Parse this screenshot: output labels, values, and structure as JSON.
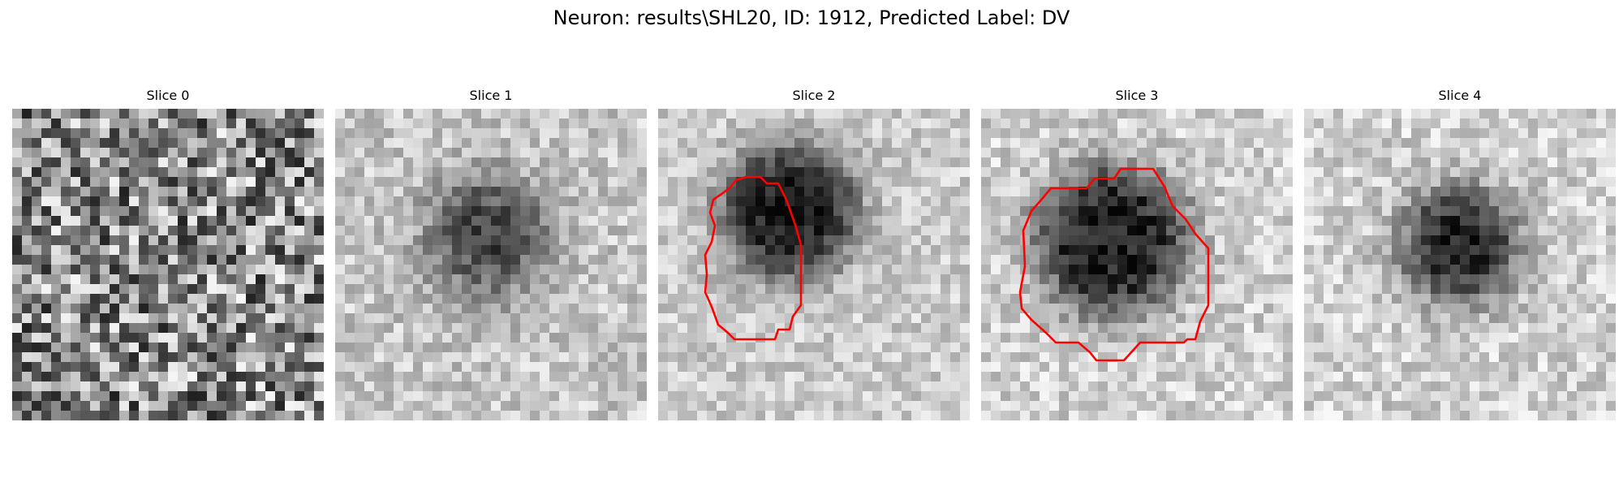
{
  "figure": {
    "title": "Neuron: results\\SHL20, ID: 1912, Predicted Label: DV"
  },
  "colors": {
    "contour": "#ff0000",
    "background": "#ffffff"
  },
  "slices": [
    {
      "title": "Slice 0",
      "has_contour": false,
      "colormap": "gray"
    },
    {
      "title": "Slice 1",
      "has_contour": false,
      "colormap": "gray"
    },
    {
      "title": "Slice 2",
      "has_contour": true,
      "colormap": "gray"
    },
    {
      "title": "Slice 3",
      "has_contour": true,
      "colormap": "gray"
    },
    {
      "title": "Slice 4",
      "has_contour": false,
      "colormap": "gray"
    }
  ]
}
